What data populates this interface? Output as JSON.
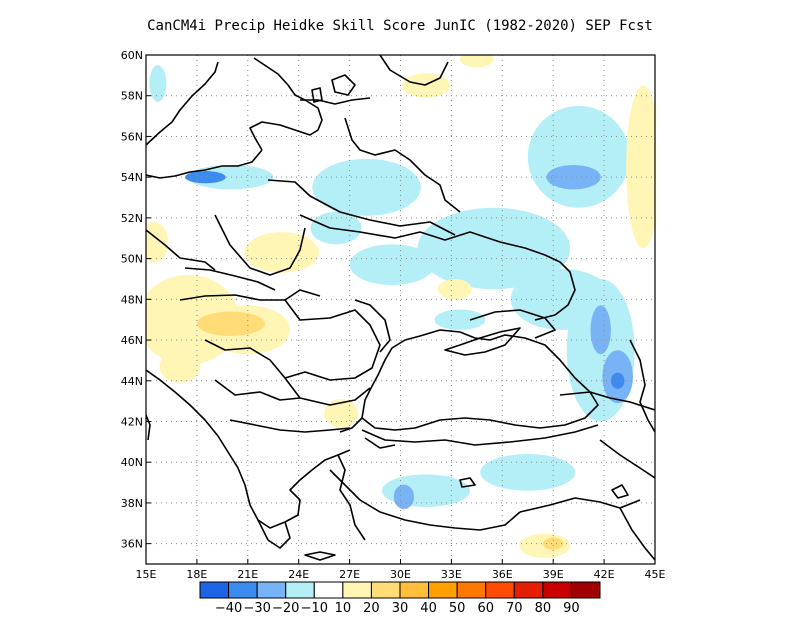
{
  "title": "CanCM4i Precip Heidke Skill Score JunIC (1982-2020) SEP Fcst",
  "map": {
    "lon_range": [
      15,
      45
    ],
    "lat_range": [
      35,
      60
    ],
    "lon_ticks": [
      {
        "value": 15,
        "label": "15E"
      },
      {
        "value": 18,
        "label": "18E"
      },
      {
        "value": 21,
        "label": "21E"
      },
      {
        "value": 24,
        "label": "24E"
      },
      {
        "value": 27,
        "label": "27E"
      },
      {
        "value": 30,
        "label": "30E"
      },
      {
        "value": 33,
        "label": "33E"
      },
      {
        "value": 36,
        "label": "36E"
      },
      {
        "value": 39,
        "label": "39E"
      },
      {
        "value": 42,
        "label": "42E"
      },
      {
        "value": 45,
        "label": "45E"
      }
    ],
    "lat_ticks": [
      {
        "value": 36,
        "label": "36N"
      },
      {
        "value": 38,
        "label": "38N"
      },
      {
        "value": 40,
        "label": "40N"
      },
      {
        "value": 42,
        "label": "42N"
      },
      {
        "value": 44,
        "label": "44N"
      },
      {
        "value": 46,
        "label": "46N"
      },
      {
        "value": 48,
        "label": "48N"
      },
      {
        "value": 50,
        "label": "50N"
      },
      {
        "value": 52,
        "label": "52N"
      },
      {
        "value": 54,
        "label": "54N"
      },
      {
        "value": 56,
        "label": "56N"
      },
      {
        "value": 58,
        "label": "58N"
      },
      {
        "value": 60,
        "label": "60N"
      }
    ],
    "grid": true
  },
  "colorbar": {
    "bins": [
      {
        "color": "#1e64e6"
      },
      {
        "color": "#3c8cf0"
      },
      {
        "color": "#78b4f5"
      },
      {
        "color": "#b4eef7"
      },
      {
        "color": "#ffffff"
      },
      {
        "color": "#fff5b4"
      },
      {
        "color": "#ffdc78"
      },
      {
        "color": "#ffbe3c"
      },
      {
        "color": "#ffa000"
      },
      {
        "color": "#ff7800"
      },
      {
        "color": "#ff4b00"
      },
      {
        "color": "#e61e00"
      },
      {
        "color": "#c80000"
      },
      {
        "color": "#a00000"
      }
    ],
    "labels": [
      "-40",
      "-30",
      "-20",
      "-10",
      "10",
      "20",
      "30",
      "40",
      "50",
      "60",
      "70",
      "80",
      "90"
    ]
  },
  "fields": [
    {
      "lon": 20.0,
      "lat": 54.0,
      "rx": 2.5,
      "ry": 0.6,
      "color": "#b4eef7"
    },
    {
      "lon": 18.5,
      "lat": 54.0,
      "rx": 1.2,
      "ry": 0.3,
      "color": "#3c8cf0"
    },
    {
      "lon": 28.0,
      "lat": 53.5,
      "rx": 3.2,
      "ry": 1.4,
      "color": "#b4eef7"
    },
    {
      "lon": 15.7,
      "lat": 58.6,
      "rx": 0.5,
      "ry": 0.9,
      "color": "#b4eef7"
    },
    {
      "lon": 40.5,
      "lat": 55.0,
      "rx": 3.0,
      "ry": 2.5,
      "color": "#b4eef7"
    },
    {
      "lon": 40.2,
      "lat": 54.0,
      "rx": 1.6,
      "ry": 0.6,
      "color": "#78b4f5"
    },
    {
      "lon": 35.5,
      "lat": 50.5,
      "rx": 4.5,
      "ry": 2.0,
      "color": "#b4eef7"
    },
    {
      "lon": 39.5,
      "lat": 48.0,
      "rx": 3.0,
      "ry": 1.5,
      "color": "#b4eef7"
    },
    {
      "lon": 41.8,
      "lat": 45.5,
      "rx": 2.0,
      "ry": 3.5,
      "color": "#b4eef7"
    },
    {
      "lon": 41.8,
      "lat": 46.5,
      "rx": 0.6,
      "ry": 1.2,
      "color": "#78b4f5"
    },
    {
      "lon": 42.8,
      "lat": 44.2,
      "rx": 0.9,
      "ry": 1.3,
      "color": "#78b4f5"
    },
    {
      "lon": 42.8,
      "lat": 44.0,
      "rx": 0.4,
      "ry": 0.4,
      "color": "#3c8cf0"
    },
    {
      "lon": 31.5,
      "lat": 38.6,
      "rx": 2.6,
      "ry": 0.8,
      "color": "#b4eef7"
    },
    {
      "lon": 30.2,
      "lat": 38.3,
      "rx": 0.6,
      "ry": 0.6,
      "color": "#78b4f5"
    },
    {
      "lon": 37.5,
      "lat": 39.5,
      "rx": 2.8,
      "ry": 0.9,
      "color": "#b4eef7"
    },
    {
      "lon": 29.5,
      "lat": 49.7,
      "rx": 2.5,
      "ry": 1.0,
      "color": "#b4eef7"
    },
    {
      "lon": 26.2,
      "lat": 51.5,
      "rx": 1.5,
      "ry": 0.8,
      "color": "#b4eef7"
    },
    {
      "lon": 33.5,
      "lat": 47.0,
      "rx": 1.5,
      "ry": 0.5,
      "color": "#b4eef7"
    },
    {
      "lon": 17.5,
      "lat": 47.0,
      "rx": 3.0,
      "ry": 2.2,
      "color": "#fff5b4"
    },
    {
      "lon": 21.0,
      "lat": 46.5,
      "rx": 2.5,
      "ry": 1.2,
      "color": "#fff5b4"
    },
    {
      "lon": 20.0,
      "lat": 46.8,
      "rx": 2.0,
      "ry": 0.6,
      "color": "#ffdc78"
    },
    {
      "lon": 23.0,
      "lat": 50.3,
      "rx": 2.2,
      "ry": 1.0,
      "color": "#fff5b4"
    },
    {
      "lon": 15.5,
      "lat": 50.8,
      "rx": 0.8,
      "ry": 1.0,
      "color": "#fff5b4"
    },
    {
      "lon": 44.3,
      "lat": 54.5,
      "rx": 1.0,
      "ry": 4.0,
      "color": "#fff5b4"
    },
    {
      "lon": 38.5,
      "lat": 35.9,
      "rx": 1.5,
      "ry": 0.6,
      "color": "#fff5b4"
    },
    {
      "lon": 39.0,
      "lat": 36.0,
      "rx": 0.6,
      "ry": 0.3,
      "color": "#ffdc78"
    },
    {
      "lon": 26.5,
      "lat": 42.4,
      "rx": 1.0,
      "ry": 0.7,
      "color": "#fff5b4"
    },
    {
      "lon": 31.5,
      "lat": 58.5,
      "rx": 1.4,
      "ry": 0.6,
      "color": "#fff5b4"
    },
    {
      "lon": 34.5,
      "lat": 59.8,
      "rx": 1.0,
      "ry": 0.4,
      "color": "#fff5b4"
    },
    {
      "lon": 17.0,
      "lat": 44.7,
      "rx": 1.2,
      "ry": 0.8,
      "color": "#fff5b4"
    },
    {
      "lon": 33.2,
      "lat": 48.5,
      "rx": 1.0,
      "ry": 0.5,
      "color": "#fff5b4"
    }
  ]
}
